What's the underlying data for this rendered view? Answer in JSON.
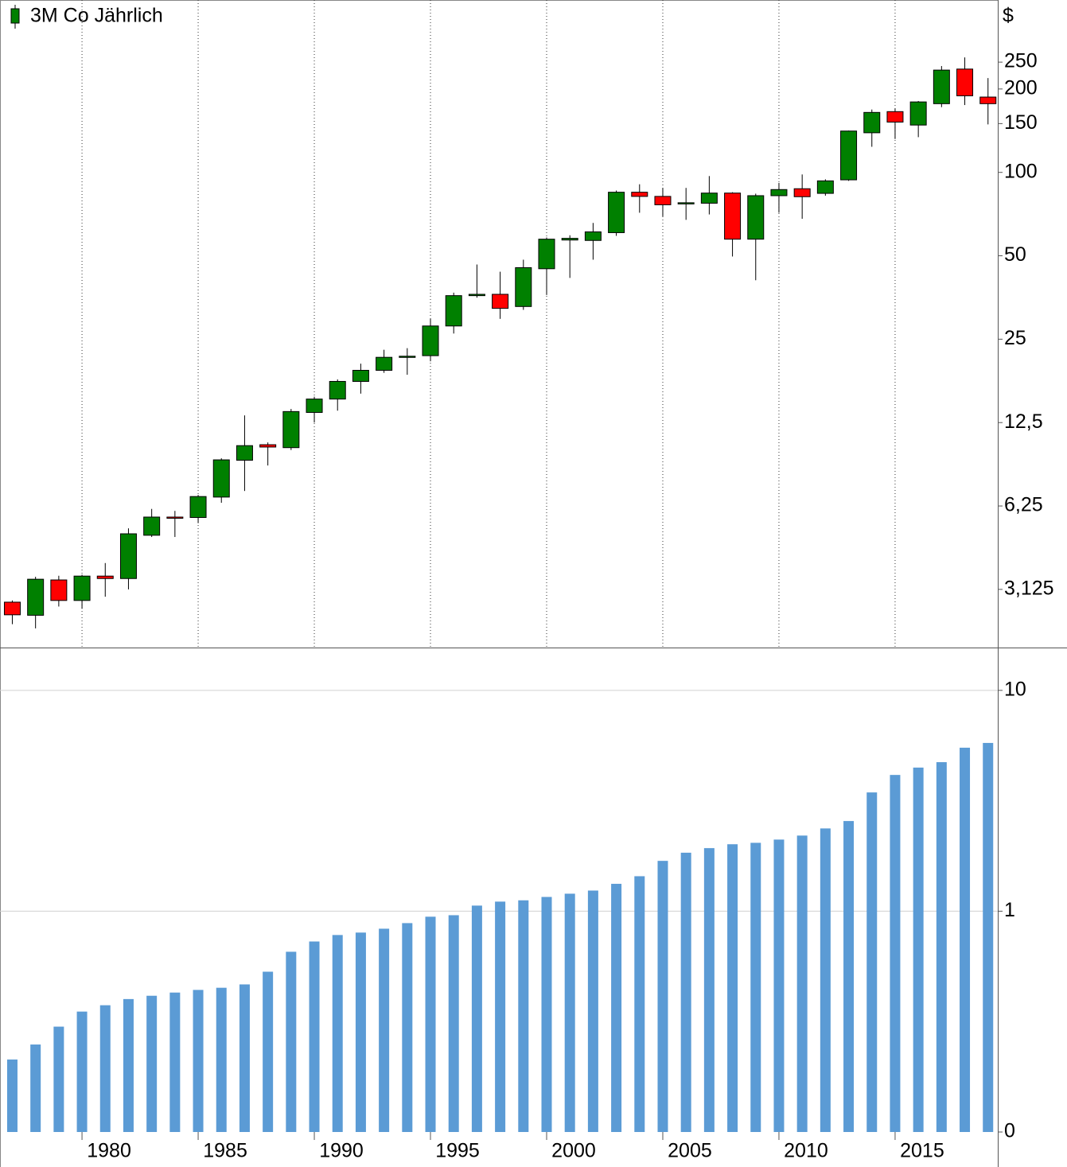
{
  "chart_data": [
    {
      "type": "candlestick",
      "y_label": "$",
      "x": [
        1977,
        1978,
        1979,
        1980,
        1981,
        1982,
        1983,
        1984,
        1985,
        1986,
        1987,
        1988,
        1989,
        1990,
        1991,
        1992,
        1993,
        1994,
        1995,
        1996,
        1997,
        1998,
        1999,
        2000,
        2001,
        2002,
        2003,
        2004,
        2005,
        2006,
        2007,
        2008,
        2009,
        2010,
        2011,
        2012,
        2013,
        2014,
        2015,
        2016,
        2017,
        2018,
        2019
      ],
      "series": [
        {
          "name": "3M Co Jährlich",
          "up_color": "#008000",
          "down_color": "#ff0000",
          "open": [
            2.81,
            2.52,
            3.38,
            2.85,
            3.49,
            3.42,
            4.9,
            5.7,
            5.68,
            6.73,
            9.14,
            10.4,
            10.15,
            13.6,
            15.2,
            17.6,
            19.3,
            21.5,
            21.8,
            27.9,
            35.9,
            36.3,
            32.8,
            44.9,
            57.0,
            56.8,
            60.6,
            84.8,
            81.9,
            77.4,
            77.4,
            84.2,
            57.4,
            82.4,
            87.3,
            84.0,
            94.0,
            139.0,
            165.7,
            148.2,
            177.0,
            236.0,
            187.0
          ],
          "high": [
            2.85,
            3.47,
            3.5,
            3.53,
            3.89,
            5.19,
            6.1,
            6.0,
            6.85,
            9.29,
            13.27,
            10.6,
            14.0,
            15.5,
            17.9,
            20.4,
            22.9,
            23.2,
            29.6,
            36.8,
            46.5,
            43.8,
            48.4,
            58.2,
            59.3,
            65.7,
            86.0,
            90.6,
            87.9,
            87.9,
            97.0,
            84.8,
            83.8,
            91.6,
            98.3,
            94.4,
            141.5,
            168.6,
            170.0,
            181.0,
            242.0,
            260.0,
            219.0
          ],
          "low": [
            2.34,
            2.26,
            2.71,
            2.66,
            2.94,
            3.125,
            4.83,
            4.83,
            5.42,
            6.42,
            7.08,
            8.75,
            9.95,
            12.5,
            13.8,
            15.9,
            18.9,
            18.6,
            20.8,
            26.2,
            35.3,
            29.6,
            31.9,
            36.1,
            41.6,
            48.4,
            59.0,
            71.5,
            69.4,
            67.4,
            70.5,
            49.7,
            40.8,
            71.5,
            68.0,
            82.4,
            93.2,
            123.7,
            132.0,
            134.0,
            172.0,
            175.0,
            149.0
          ],
          "close": [
            2.53,
            3.4,
            2.85,
            3.49,
            3.42,
            4.96,
            5.7,
            5.68,
            6.76,
            9.17,
            10.32,
            10.2,
            13.7,
            15.2,
            17.6,
            19.3,
            21.5,
            21.7,
            27.9,
            35.9,
            36.3,
            32.3,
            45.3,
            57.4,
            57.8,
            61.0,
            84.8,
            81.9,
            76.4,
            77.7,
            84.2,
            57.4,
            82.4,
            86.7,
            81.7,
            93.2,
            141.0,
            164.6,
            151.9,
            179.6,
            234.0,
            189.0,
            177.0
          ]
        }
      ],
      "log_scale": true,
      "xlim": [
        1976.47,
        2019.42
      ],
      "ylim": [
        1.94,
        419
      ],
      "yticks": [
        250,
        200,
        150,
        100,
        50,
        25,
        {
          "value": 12.5,
          "label": "12,5"
        },
        {
          "value": 6.25,
          "label": "6,25"
        },
        {
          "value": 3.125,
          "label": "3,125"
        }
      ],
      "xticks": [
        1980,
        1985,
        1990,
        1995,
        2000,
        2005,
        2010,
        2015
      ],
      "grid": true
    },
    {
      "type": "bar",
      "x": [
        1977,
        1978,
        1979,
        1980,
        1981,
        1982,
        1983,
        1984,
        1985,
        1986,
        1987,
        1988,
        1989,
        1990,
        1991,
        1992,
        1993,
        1994,
        1995,
        1996,
        1997,
        1998,
        1999,
        2000,
        2001,
        2002,
        2003,
        2004,
        2005,
        2006,
        2007,
        2008,
        2009,
        2010,
        2011,
        2012,
        2013,
        2014,
        2015,
        2016,
        2017,
        2018,
        2019
      ],
      "values": [
        0.213,
        0.249,
        0.3,
        0.351,
        0.375,
        0.4,
        0.414,
        0.428,
        0.44,
        0.45,
        0.466,
        0.532,
        0.655,
        0.729,
        0.78,
        0.8,
        0.833,
        0.883,
        0.944,
        0.959,
        1.06,
        1.105,
        1.12,
        1.16,
        1.2,
        1.24,
        1.33,
        1.44,
        1.69,
        1.84,
        1.93,
        2.01,
        2.04,
        2.11,
        2.2,
        2.37,
        2.56,
        3.45,
        4.14,
        4.47,
        4.73,
        5.5,
        5.78
      ],
      "color": "#5b9bd5",
      "log_scale": true,
      "xlim": [
        1976.47,
        2019.42
      ],
      "ylim": [
        0.1,
        15.5
      ],
      "yticks": [
        {
          "value": 0.1,
          "label": "0"
        },
        1,
        10
      ],
      "xticks": [
        1980,
        1985,
        1990,
        1995,
        2000,
        2005,
        2010,
        2015
      ],
      "grid": true
    }
  ]
}
